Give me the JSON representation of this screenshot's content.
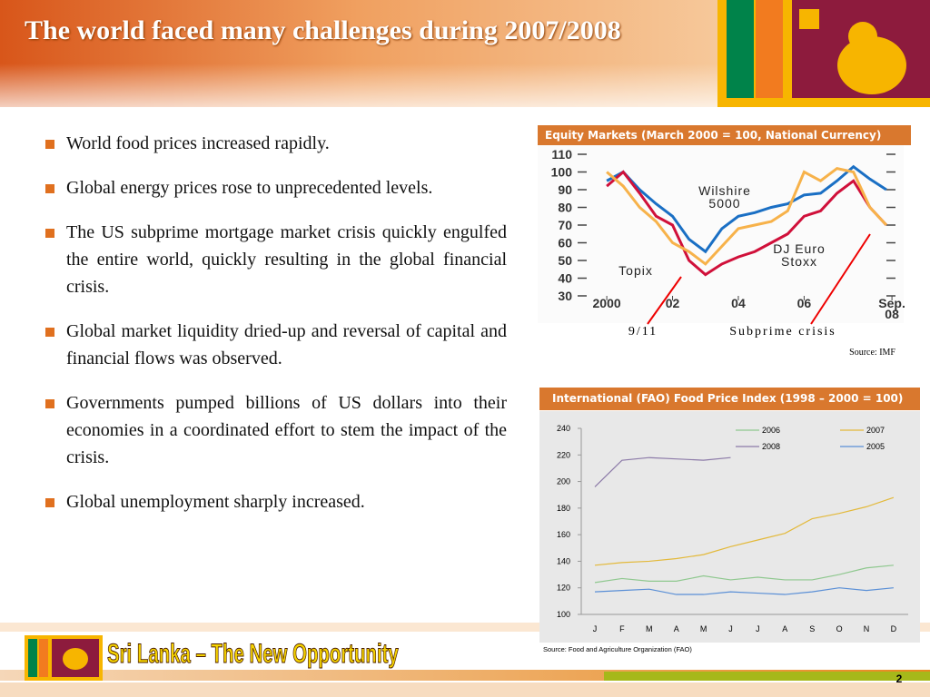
{
  "title": "The world faced many challenges during 2007/2008",
  "bullets": [
    "World food prices increased rapidly.",
    "Global energy prices rose to unprecedented levels.",
    "The US subprime mortgage market crisis quickly engulfed the entire world, quickly resulting in the global financial crisis.",
    "Global market liquidity dried-up and reversal of capital and financial flows was observed.",
    "Governments pumped billions of US dollars into their economies in a coordinated effort to stem the impact of the crisis.",
    "Global unemployment sharply increased."
  ],
  "chart_data": [
    {
      "type": "line",
      "title": "Equity Markets (March 2000 = 100, National Currency)",
      "x": [
        2000,
        2000.5,
        2001,
        2001.5,
        2002,
        2002.5,
        2003,
        2003.5,
        2004,
        2004.5,
        2005,
        2005.5,
        2006,
        2006.5,
        2007,
        2007.5,
        2008,
        2008.5
      ],
      "series": [
        {
          "name": "Wilshire 5000",
          "color": "#1a6fc4",
          "values": [
            95,
            100,
            90,
            82,
            75,
            62,
            55,
            68,
            75,
            77,
            80,
            82,
            87,
            88,
            95,
            103,
            96,
            90
          ]
        },
        {
          "name": "DJ Euro Stoxx",
          "color": "#d0103a",
          "values": [
            92,
            100,
            88,
            75,
            70,
            50,
            42,
            48,
            52,
            55,
            60,
            65,
            75,
            78,
            88,
            95,
            80,
            70
          ]
        },
        {
          "name": "Topix",
          "color": "#f7b24a",
          "values": [
            100,
            92,
            80,
            72,
            60,
            55,
            48,
            58,
            68,
            70,
            72,
            78,
            100,
            95,
            102,
            100,
            80,
            70
          ]
        }
      ],
      "xlim": [
        1999.5,
        2008.75
      ],
      "xticks": [
        {
          "value": 2000,
          "label": "2000"
        },
        {
          "value": 2002,
          "label": "02"
        },
        {
          "value": 2004,
          "label": "04"
        },
        {
          "value": 2006,
          "label": "06"
        },
        {
          "value": 2008.67,
          "label": "Sep. 08"
        }
      ],
      "ylim": [
        30,
        110
      ],
      "yticks": [
        30,
        40,
        50,
        60,
        70,
        80,
        90,
        100,
        110
      ],
      "annotations": [
        "9/11",
        "Subprime crisis"
      ],
      "source": "Source: IMF"
    },
    {
      "type": "line",
      "title": "International (FAO) Food Price Index (1998 – 2000 = 100)",
      "categories": [
        "J",
        "F",
        "M",
        "A",
        "M",
        "J",
        "J",
        "A",
        "S",
        "O",
        "N",
        "D"
      ],
      "series": [
        {
          "name": "2006",
          "color": "#8fc88f",
          "values": [
            124,
            127,
            125,
            125,
            129,
            126,
            128,
            126,
            126,
            130,
            135,
            137
          ]
        },
        {
          "name": "2007",
          "color": "#e3b93a",
          "values": [
            137,
            139,
            140,
            142,
            145,
            151,
            156,
            161,
            172,
            176,
            181,
            188
          ]
        },
        {
          "name": "2008",
          "color": "#8c7aa8",
          "values": [
            196,
            216,
            218,
            217,
            216,
            218,
            null,
            null,
            null,
            null,
            null,
            null
          ]
        },
        {
          "name": "2005",
          "color": "#5a8fd6",
          "values": [
            117,
            118,
            119,
            115,
            115,
            117,
            116,
            115,
            117,
            120,
            118,
            120
          ]
        }
      ],
      "ylim": [
        100,
        240
      ],
      "yticks": [
        100,
        120,
        140,
        160,
        180,
        200,
        220,
        240
      ],
      "source": "Source: Food and Agriculture Organization (FAO)"
    }
  ],
  "footer": {
    "brand": "Sri Lanka – The New Opportunity",
    "page": "2"
  }
}
